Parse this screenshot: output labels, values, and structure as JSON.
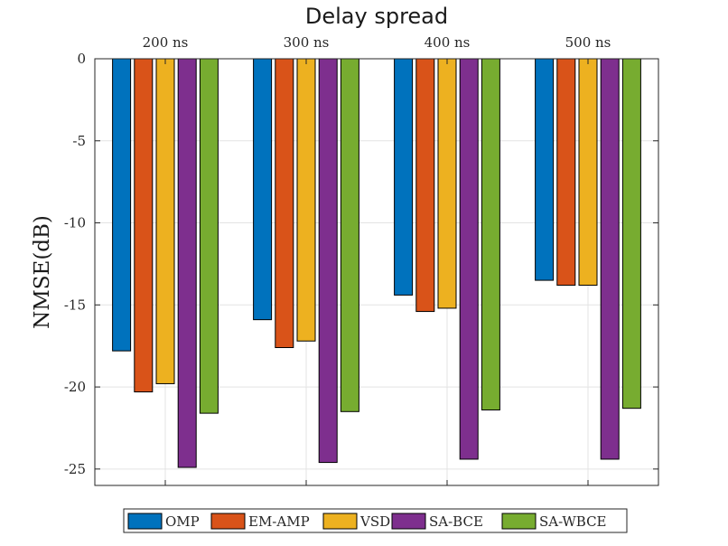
{
  "chart_data": {
    "type": "bar",
    "title": "Delay spread",
    "xlabel": "",
    "ylabel": "NMSE(dB)",
    "categories": [
      "200 ns",
      "300 ns",
      "400 ns",
      "500 ns"
    ],
    "ylim": [
      -26,
      0
    ],
    "yticks": [
      0,
      -5,
      -10,
      -15,
      -20,
      -25
    ],
    "x_axis_location": "top",
    "grid": true,
    "legend_position": "bottom",
    "legend_orientation": "horizontal",
    "series": [
      {
        "name": "OMP",
        "color": "#0072BD",
        "values": [
          -17.8,
          -15.9,
          -14.4,
          -13.5
        ]
      },
      {
        "name": "EM-AMP",
        "color": "#D95319",
        "values": [
          -20.3,
          -17.6,
          -15.4,
          -13.8
        ]
      },
      {
        "name": "VSD",
        "color": "#EDB120",
        "values": [
          -19.8,
          -17.2,
          -15.2,
          -13.8
        ]
      },
      {
        "name": "SA-BCE",
        "color": "#7E2F8E",
        "values": [
          -24.9,
          -24.6,
          -24.4,
          -24.4
        ]
      },
      {
        "name": "SA-WBCE",
        "color": "#77AC30",
        "values": [
          -21.6,
          -21.5,
          -21.4,
          -21.3
        ]
      }
    ]
  }
}
